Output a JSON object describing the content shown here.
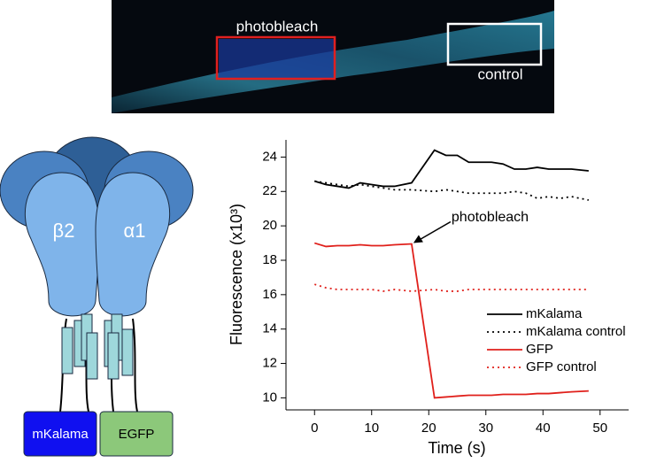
{
  "image": {
    "labels": [
      "photobleach",
      "control"
    ]
  },
  "diagram": {
    "subunits": [
      "β2",
      "α1"
    ],
    "tags": [
      "mKalama",
      "EGFP"
    ]
  },
  "chart_data": {
    "type": "line",
    "xlabel": "Time (s)",
    "ylabel": "Fluorescence (x10³)",
    "x": [
      0,
      2,
      4,
      6,
      8,
      10,
      12,
      14,
      17,
      21,
      23,
      25,
      27,
      29,
      31,
      33,
      35,
      37,
      39,
      41,
      43,
      45,
      48
    ],
    "series": [
      {
        "name": "mKalama",
        "color": "#000000",
        "dash": "solid",
        "values": [
          22.6,
          22.4,
          22.3,
          22.2,
          22.5,
          22.4,
          22.3,
          22.3,
          22.5,
          24.4,
          24.1,
          24.1,
          23.7,
          23.7,
          23.7,
          23.6,
          23.3,
          23.3,
          23.4,
          23.3,
          23.3,
          23.3,
          23.2
        ]
      },
      {
        "name": "mKalama control",
        "color": "#000000",
        "dash": "dotted",
        "values": [
          22.6,
          22.5,
          22.4,
          22.3,
          22.4,
          22.3,
          22.2,
          22.1,
          22.1,
          22.0,
          22.1,
          22.0,
          21.9,
          21.9,
          21.9,
          21.9,
          22.0,
          21.9,
          21.6,
          21.7,
          21.6,
          21.7,
          21.5
        ]
      },
      {
        "name": "GFP",
        "color": "#e0201b",
        "dash": "solid",
        "values": [
          19.0,
          18.8,
          18.85,
          18.85,
          18.9,
          18.85,
          18.85,
          18.9,
          18.95,
          10.0,
          10.05,
          10.1,
          10.15,
          10.15,
          10.15,
          10.2,
          10.2,
          10.2,
          10.25,
          10.25,
          10.3,
          10.35,
          10.4
        ]
      },
      {
        "name": "GFP control",
        "color": "#e0201b",
        "dash": "dotted",
        "values": [
          16.6,
          16.4,
          16.3,
          16.3,
          16.3,
          16.3,
          16.2,
          16.3,
          16.2,
          16.3,
          16.2,
          16.2,
          16.3,
          16.3,
          16.3,
          16.3,
          16.3,
          16.3,
          16.3,
          16.3,
          16.3,
          16.3,
          16.3
        ]
      }
    ],
    "annotation": "photobleach",
    "xlim": [
      -5,
      55
    ],
    "xticks": [
      0,
      10,
      20,
      30,
      40,
      50
    ],
    "ylim": [
      9.3,
      25
    ],
    "yticks": [
      10,
      12,
      14,
      16,
      18,
      20,
      22,
      24
    ],
    "legend": "lower right"
  }
}
